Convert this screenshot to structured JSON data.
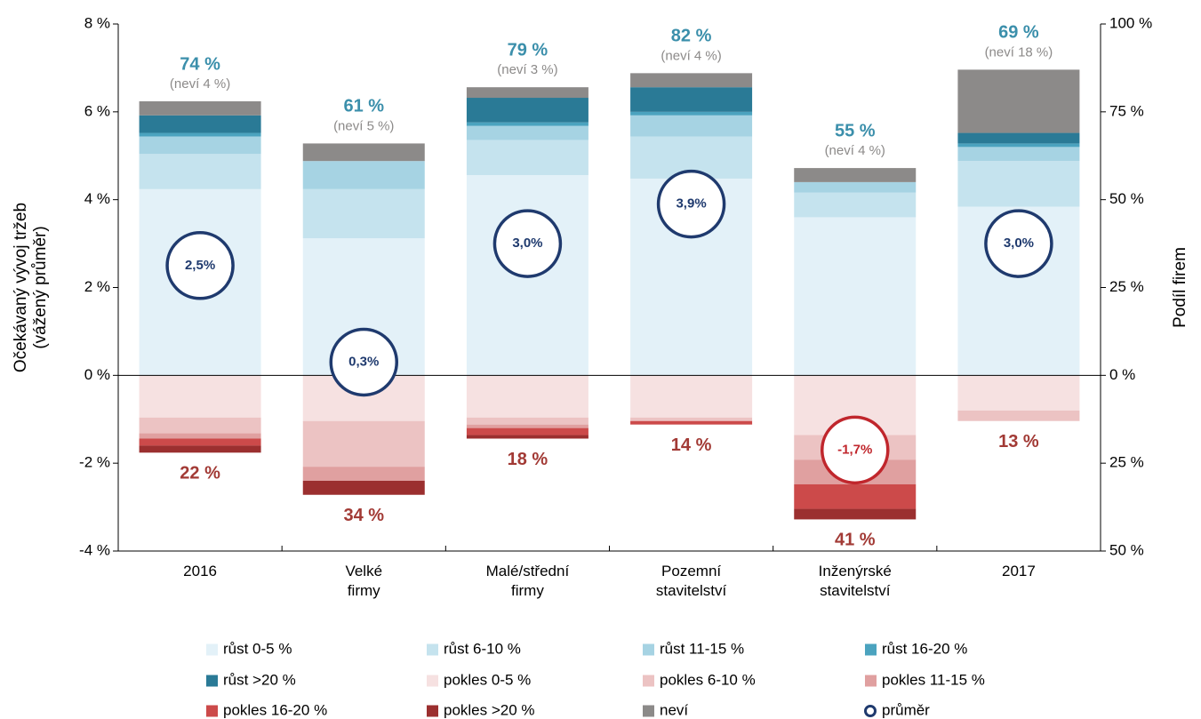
{
  "chart_data": {
    "type": "stacked-bar",
    "ylabel": [
      "Očekávaný vývoj tržeb",
      "(vážený průměr)"
    ],
    "y2label": "Podíl firem",
    "categories": [
      [
        "2016"
      ],
      [
        "Velké",
        "firmy"
      ],
      [
        "Malé/střední",
        "firmy"
      ],
      [
        "Pozemní",
        "stavitelství"
      ],
      [
        "Inženýrské",
        "stavitelství"
      ],
      [
        "2017"
      ]
    ],
    "ylim": [
      -4,
      8
    ],
    "yticks": [
      {
        "value": -4,
        "label": "-4 %"
      },
      {
        "value": -2,
        "label": "-2 %"
      },
      {
        "value": 0,
        "label": "0 %"
      },
      {
        "value": 2,
        "label": "2 %"
      },
      {
        "value": 4,
        "label": "4 %"
      },
      {
        "value": 6,
        "label": "6 %"
      },
      {
        "value": 8,
        "label": "8 %"
      }
    ],
    "y2lim": [
      -50,
      100
    ],
    "y2ticks": [
      {
        "value": -50,
        "label": "50 %"
      },
      {
        "value": -25,
        "label": "25 %"
      },
      {
        "value": 0,
        "label": "0 %"
      },
      {
        "value": 25,
        "label": "25 %"
      },
      {
        "value": 50,
        "label": "50 %"
      },
      {
        "value": 75,
        "label": "75 %"
      },
      {
        "value": 100,
        "label": "100 %"
      }
    ],
    "series": [
      {
        "name": "růst 0-5 %",
        "color": "#e3f1f8",
        "axis": "y2",
        "direction": "up",
        "values": [
          53,
          39,
          57,
          56,
          45,
          48
        ]
      },
      {
        "name": "růst 6-10 %",
        "color": "#c5e3ee",
        "axis": "y2",
        "direction": "up",
        "values": [
          10,
          14,
          10,
          12,
          7,
          13
        ]
      },
      {
        "name": "růst 11-15 %",
        "color": "#a6d3e3",
        "axis": "y2",
        "direction": "up",
        "values": [
          5,
          8,
          4,
          6,
          3,
          4
        ]
      },
      {
        "name": "růst 16-20 %",
        "color": "#4ba3bf",
        "axis": "y2",
        "direction": "up",
        "values": [
          1,
          0,
          1,
          1,
          0,
          1
        ]
      },
      {
        "name": "růst >20 %",
        "color": "#2a7a96",
        "axis": "y2",
        "direction": "up",
        "values": [
          5,
          0,
          7,
          7,
          0,
          3
        ]
      },
      {
        "name": "pokles 0-5 %",
        "color": "#f6e1e1",
        "axis": "y2",
        "direction": "down",
        "values": [
          12,
          13,
          12,
          12,
          17,
          10
        ]
      },
      {
        "name": "pokles 6-10 %",
        "color": "#ecc3c3",
        "axis": "y2",
        "direction": "down",
        "values": [
          4.5,
          13,
          2,
          1,
          7,
          3
        ]
      },
      {
        "name": "pokles 11-15 %",
        "color": "#e0a0a0",
        "axis": "y2",
        "direction": "down",
        "values": [
          1.5,
          4,
          1,
          0,
          7,
          0
        ]
      },
      {
        "name": "pokles 16-20 %",
        "color": "#cc4a4a",
        "axis": "y2",
        "direction": "down",
        "values": [
          2,
          0,
          2,
          1,
          7,
          0
        ]
      },
      {
        "name": "pokles >20 %",
        "color": "#9b2f2f",
        "axis": "y2",
        "direction": "down",
        "values": [
          2,
          4,
          1,
          0,
          3,
          0
        ]
      },
      {
        "name": "neví",
        "color": "#8c8a89",
        "axis": "y2",
        "direction": "up",
        "values": [
          4,
          5,
          3,
          4,
          4,
          18
        ],
        "value_labels": [
          "(neví 4 %)",
          "(neví 5 %)",
          "(neví 3 %)",
          "(neví 4 %)",
          "(neví 4 %)",
          "(neví 18 %)"
        ]
      },
      {
        "name": "průměr",
        "type": "circle",
        "color": "#1f3a6e",
        "negative_color": "#c0262c",
        "axis": "y",
        "values": [
          2.5,
          0.3,
          3.0,
          3.9,
          -1.7,
          3.0
        ],
        "value_labels": [
          "2,5%",
          "0,3%",
          "3,0%",
          "3,9%",
          "-1,7%",
          "3,0%"
        ]
      }
    ],
    "growth_totals": {
      "color": "#3b8fab",
      "values": [
        74,
        61,
        79,
        82,
        55,
        69
      ],
      "value_labels": [
        "74 %",
        "61 %",
        "79 %",
        "82 %",
        "55 %",
        "69 %"
      ]
    },
    "decline_totals": {
      "color": "#a23a35",
      "values": [
        22,
        34,
        18,
        14,
        41,
        13
      ],
      "value_labels": [
        "22 %",
        "34 %",
        "18 %",
        "14 %",
        "41 %",
        "13 %"
      ]
    }
  }
}
